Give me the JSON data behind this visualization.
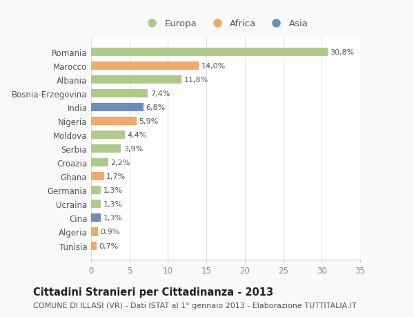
{
  "countries": [
    "Romania",
    "Marocco",
    "Albania",
    "Bosnia-Erzegovina",
    "India",
    "Nigeria",
    "Moldova",
    "Serbia",
    "Croazia",
    "Ghana",
    "Germania",
    "Ucraina",
    "Cina",
    "Algeria",
    "Tunisia"
  ],
  "values": [
    30.8,
    14.0,
    11.8,
    7.4,
    6.8,
    5.9,
    4.4,
    3.9,
    2.2,
    1.7,
    1.3,
    1.3,
    1.3,
    0.9,
    0.7
  ],
  "labels": [
    "30,8%",
    "14,0%",
    "11,8%",
    "7,4%",
    "6,8%",
    "5,9%",
    "4,4%",
    "3,9%",
    "2,2%",
    "1,7%",
    "1,3%",
    "1,3%",
    "1,3%",
    "0,9%",
    "0,7%"
  ],
  "continents": [
    "Europa",
    "Africa",
    "Europa",
    "Europa",
    "Asia",
    "Africa",
    "Europa",
    "Europa",
    "Europa",
    "Africa",
    "Europa",
    "Europa",
    "Asia",
    "Africa",
    "Africa"
  ],
  "colors": {
    "Europa": "#aec98a",
    "Africa": "#f2aa6a",
    "Asia": "#6e8dbf"
  },
  "legend_labels": [
    "Europa",
    "Africa",
    "Asia"
  ],
  "legend_colors": [
    "#aec98a",
    "#f2aa6a",
    "#6e8dbf"
  ],
  "title": "Cittadini Stranieri per Cittadinanza - 2013",
  "subtitle": "COMUNE DI ILLASI (VR) - Dati ISTAT al 1° gennaio 2013 - Elaborazione TUTTITALIA.IT",
  "xlim": [
    0,
    35
  ],
  "xticks": [
    0,
    5,
    10,
    15,
    20,
    25,
    30,
    35
  ],
  "background_color": "#f9f9f9",
  "plot_background": "#ffffff",
  "grid_color": "#e0e0e0",
  "bar_height": 0.6,
  "title_fontsize": 10.5,
  "subtitle_fontsize": 8,
  "label_fontsize": 8,
  "tick_fontsize": 8.5,
  "legend_fontsize": 9.5
}
